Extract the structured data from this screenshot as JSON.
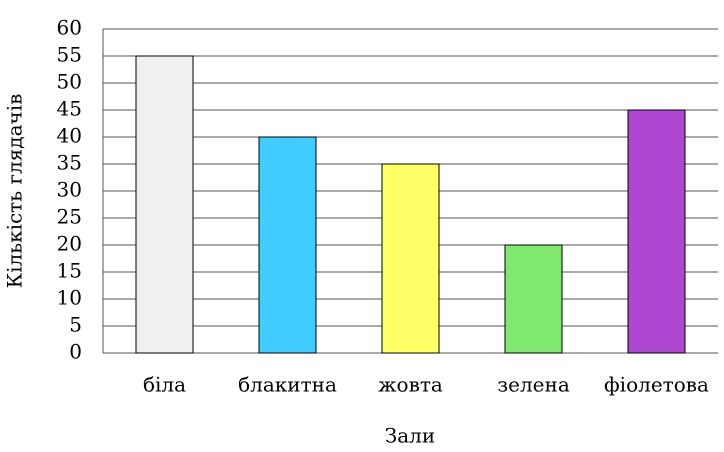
{
  "chart_data": {
    "type": "bar",
    "x_label": "Зали",
    "y_label": "Кількість глядачів",
    "categories": [
      "біла",
      "блакитна",
      "жовта",
      "зелена",
      "фіолетова"
    ],
    "values": [
      55,
      40,
      35,
      20,
      45
    ],
    "colors": [
      "#f0f0f0",
      "#40ccff",
      "#ffff66",
      "#80e870",
      "#ae48d0"
    ],
    "ylim": [
      0,
      60
    ],
    "yticks": [
      0,
      5,
      10,
      15,
      20,
      25,
      30,
      35,
      40,
      45,
      50,
      55,
      60
    ],
    "grid": true
  }
}
